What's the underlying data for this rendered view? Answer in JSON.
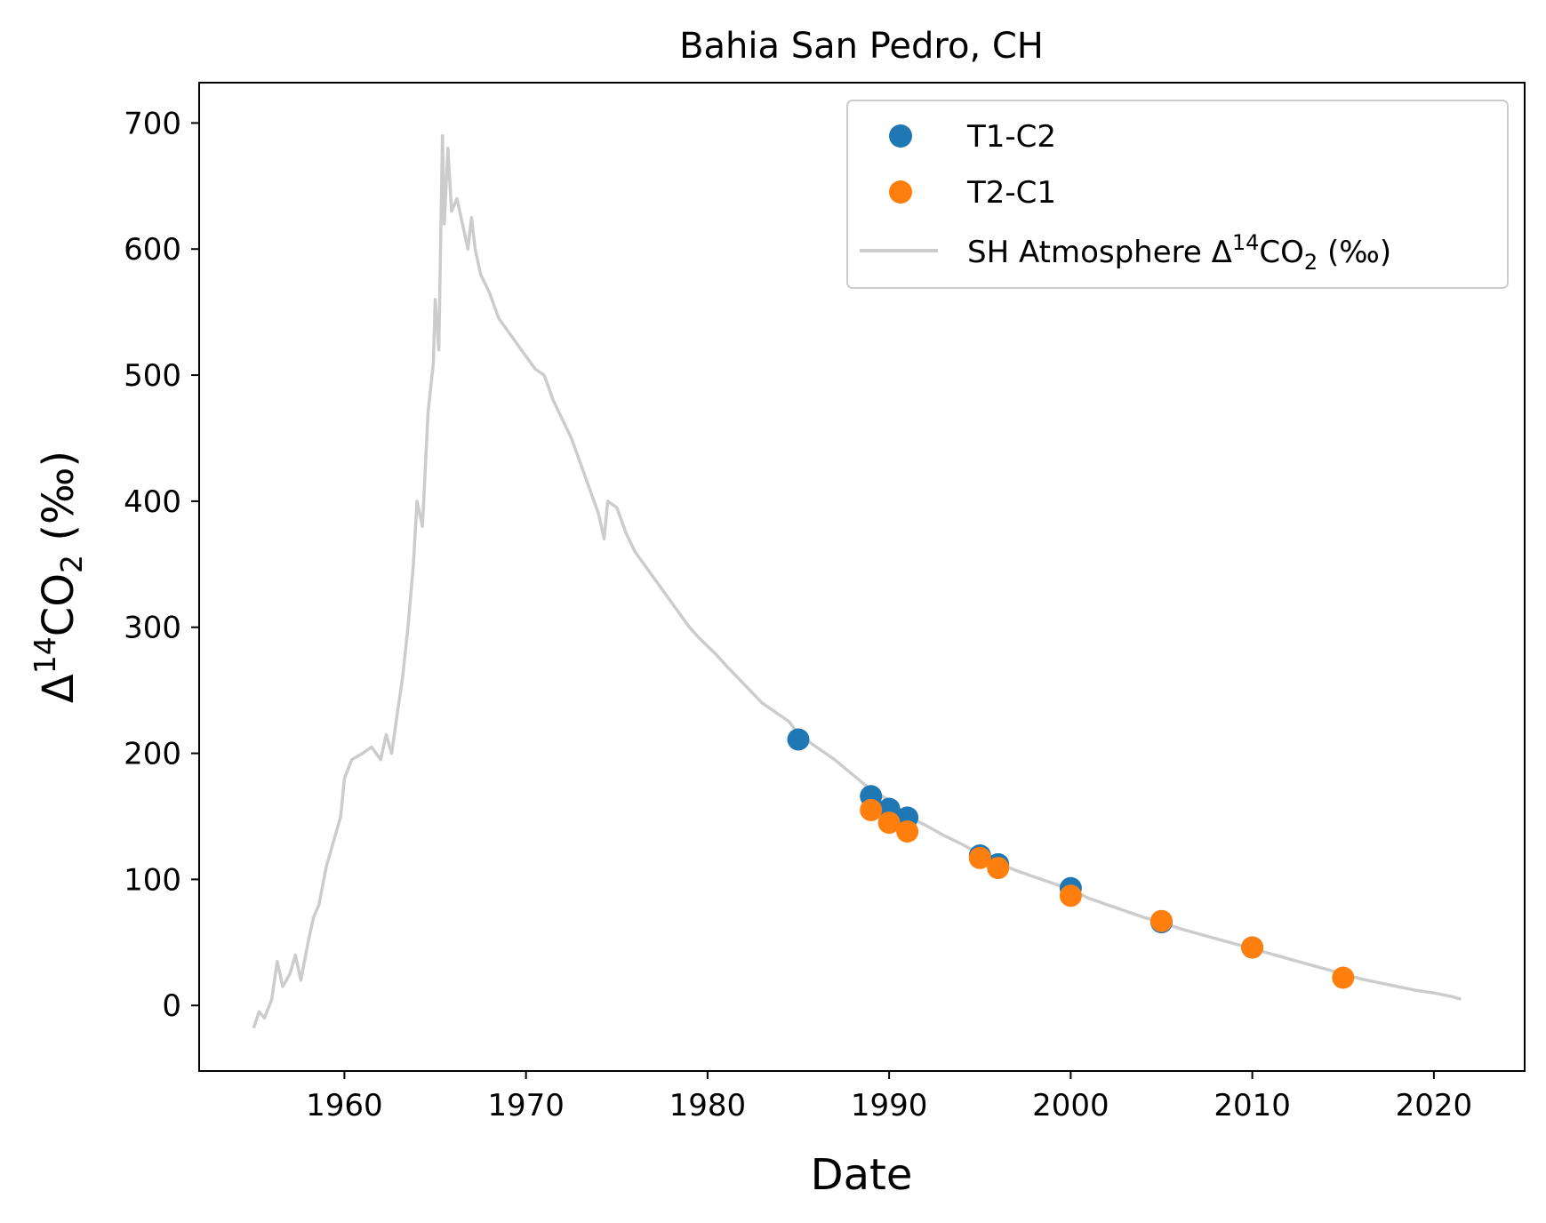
{
  "chart_data": {
    "type": "scatter",
    "title": "Bahia San Pedro, CH",
    "xlabel": "Date",
    "ylabel": {
      "prefix": "Δ",
      "sup": "14",
      "main": "CO",
      "sub": "2",
      "suffix": " (‰)"
    },
    "xlim": [
      1952,
      2025
    ],
    "ylim": [
      -52,
      732
    ],
    "xticks": [
      1960,
      1970,
      1980,
      1990,
      2000,
      2010,
      2020
    ],
    "yticks": [
      0,
      100,
      200,
      300,
      400,
      500,
      600,
      700
    ],
    "grid": false,
    "legend": "top-right",
    "series": [
      {
        "name": "T1-C2",
        "kind": "scatter",
        "color": "#1f77b4",
        "x": [
          1985.0,
          1989.0,
          1990.0,
          1991.0,
          1995.0,
          1996.0,
          2000.0,
          2005.0,
          2010.0
        ],
        "y": [
          211,
          166,
          156,
          149,
          119,
          112,
          93,
          66,
          46
        ]
      },
      {
        "name": "T2-C1",
        "kind": "scatter",
        "color": "#ff7f0e",
        "x": [
          1989.0,
          1990.0,
          1991.0,
          1995.0,
          1996.0,
          2000.0,
          2005.0,
          2010.0,
          2015.0
        ],
        "y": [
          155,
          145,
          138,
          117,
          109,
          87,
          67,
          46,
          22
        ]
      },
      {
        "name": {
          "prefix": "SH Atmosphere Δ",
          "sup": "14",
          "main": "CO",
          "sub": "2",
          "suffix": " (‰)"
        },
        "kind": "line",
        "color": "#cccccc",
        "x": [
          1955.0,
          1955.3,
          1955.6,
          1956.0,
          1956.3,
          1956.6,
          1957.0,
          1957.3,
          1957.6,
          1958.0,
          1958.3,
          1958.6,
          1959.0,
          1959.4,
          1959.8,
          1960.0,
          1960.4,
          1961.0,
          1961.5,
          1962.0,
          1962.3,
          1962.6,
          1962.9,
          1963.2,
          1963.5,
          1963.8,
          1964.0,
          1964.3,
          1964.6,
          1964.9,
          1965.0,
          1965.2,
          1965.4,
          1965.5,
          1965.7,
          1965.9,
          1966.2,
          1966.5,
          1966.8,
          1967.0,
          1967.2,
          1967.5,
          1968.0,
          1968.5,
          1969.0,
          1969.5,
          1970.0,
          1970.5,
          1971.0,
          1971.5,
          1972.0,
          1972.5,
          1973.0,
          1973.5,
          1974.0,
          1974.3,
          1974.5,
          1975.0,
          1975.5,
          1976.0,
          1976.5,
          1977.0,
          1977.5,
          1978.0,
          1978.5,
          1979.0,
          1979.5,
          1980.0,
          1980.5,
          1981.0,
          1982.0,
          1983.0,
          1984.0,
          1984.5,
          1985.0,
          1986.0,
          1987.0,
          1988.0,
          1989.0,
          1990.0,
          1991.0,
          1992.0,
          1993.0,
          1994.0,
          1995.0,
          1996.0,
          1997.0,
          1998.0,
          1999.0,
          2000.0,
          2001.0,
          2002.0,
          2003.0,
          2004.0,
          2005.0,
          2006.0,
          2007.0,
          2008.0,
          2009.0,
          2010.0,
          2011.0,
          2012.0,
          2013.0,
          2014.0,
          2015.0,
          2016.0,
          2017.0,
          2018.0,
          2019.0,
          2020.0,
          2021.0,
          2021.5
        ],
        "y": [
          -18,
          -5,
          -10,
          5,
          35,
          15,
          25,
          40,
          20,
          50,
          70,
          80,
          110,
          130,
          150,
          180,
          195,
          200,
          205,
          195,
          215,
          200,
          230,
          260,
          300,
          350,
          400,
          380,
          470,
          510,
          560,
          520,
          690,
          620,
          680,
          630,
          640,
          620,
          600,
          625,
          600,
          580,
          565,
          545,
          535,
          525,
          515,
          505,
          500,
          480,
          465,
          450,
          430,
          410,
          390,
          370,
          400,
          395,
          375,
          360,
          350,
          340,
          330,
          320,
          310,
          300,
          292,
          285,
          278,
          270,
          255,
          240,
          230,
          225,
          215,
          205,
          195,
          183,
          171,
          163,
          150,
          143,
          135,
          128,
          120,
          113,
          107,
          102,
          97,
          92,
          85,
          80,
          75,
          70,
          66,
          61,
          57,
          53,
          49,
          45,
          41,
          37,
          33,
          29,
          25,
          21,
          18,
          15,
          12,
          10,
          7,
          5
        ]
      }
    ]
  }
}
